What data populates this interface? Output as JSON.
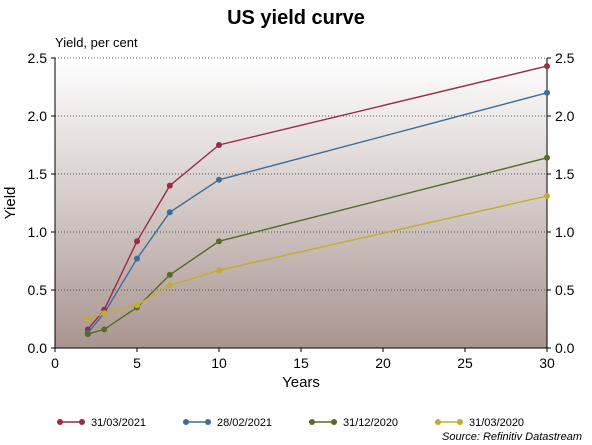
{
  "chart_data": {
    "type": "line",
    "title": "US yield curve",
    "unit_label": "Yield, per cent",
    "ylabel": "Yield",
    "xlabel": "Years",
    "xlim": [
      0,
      30
    ],
    "ylim": [
      0,
      2.5
    ],
    "x_ticks": [
      0,
      5,
      10,
      15,
      20,
      25,
      30
    ],
    "y_ticks": [
      "0.0",
      "0.5",
      "1.0",
      "1.5",
      "2.0",
      "2.5"
    ],
    "grid": "horizontal dotted",
    "legend_position": "bottom",
    "source": "Source: Refinitiv Datastream",
    "series": [
      {
        "name": "31/03/2021",
        "color": "#9b2a45",
        "x": [
          2,
          3,
          5,
          7,
          10,
          30
        ],
        "y": [
          0.16,
          0.33,
          0.92,
          1.4,
          1.75,
          2.43
        ]
      },
      {
        "name": "28/02/2021",
        "color": "#3a6e9c",
        "x": [
          2,
          3,
          5,
          7,
          10,
          30
        ],
        "y": [
          0.13,
          0.3,
          0.77,
          1.17,
          1.45,
          2.2
        ]
      },
      {
        "name": "31/12/2020",
        "color": "#566b26",
        "x": [
          2,
          3,
          5,
          7,
          10,
          30
        ],
        "y": [
          0.12,
          0.16,
          0.35,
          0.63,
          0.92,
          1.64
        ]
      },
      {
        "name": "31/03/2020",
        "color": "#c2ad32",
        "x": [
          2,
          3,
          5,
          7,
          10,
          30
        ],
        "y": [
          0.25,
          0.3,
          0.37,
          0.54,
          0.67,
          1.31
        ]
      }
    ]
  }
}
